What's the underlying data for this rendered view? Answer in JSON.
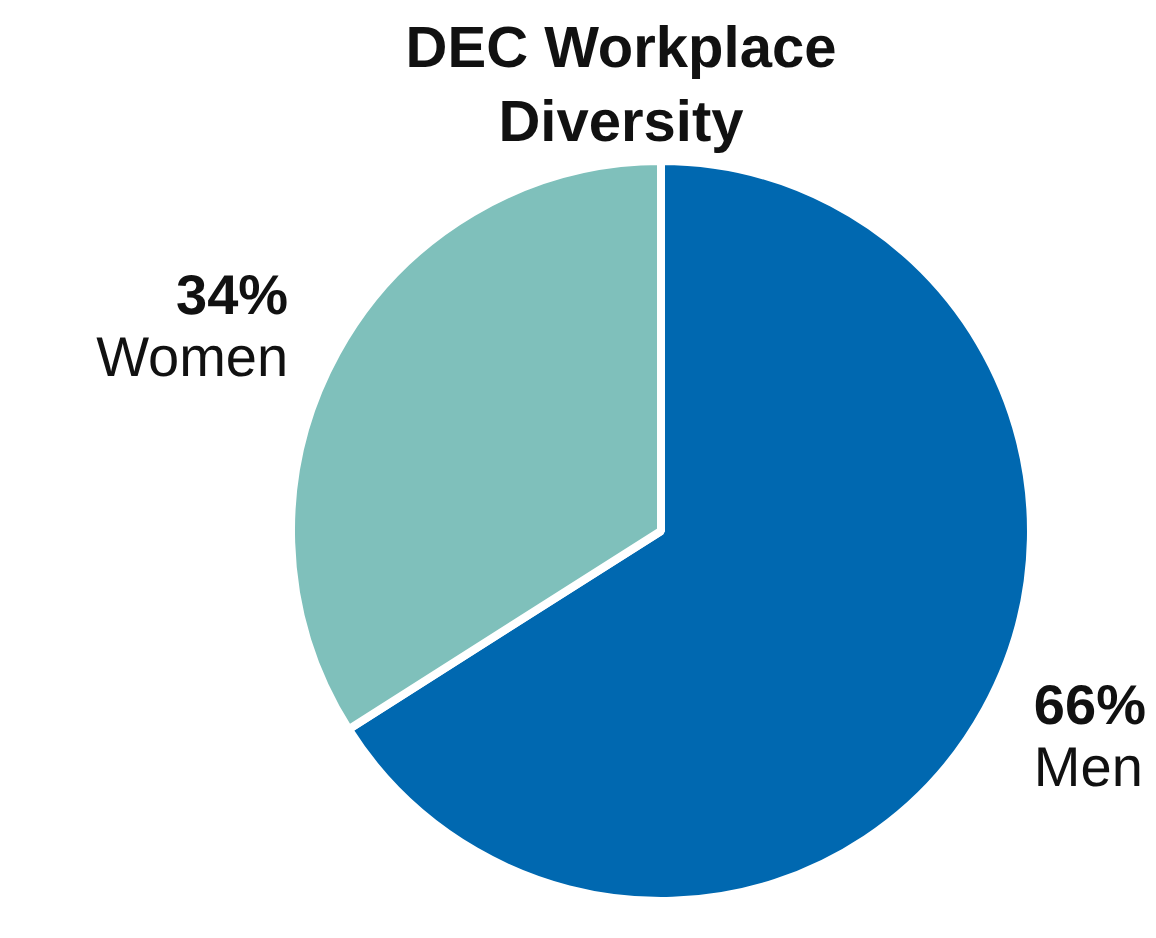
{
  "chart_data": {
    "type": "pie",
    "title": "DEC Workplace Diversity",
    "categories": [
      "Men",
      "Women"
    ],
    "values": [
      66,
      34
    ],
    "value_labels": [
      "66%",
      "34%"
    ],
    "colors": [
      "#0068b0",
      "#7fc0bb"
    ]
  }
}
